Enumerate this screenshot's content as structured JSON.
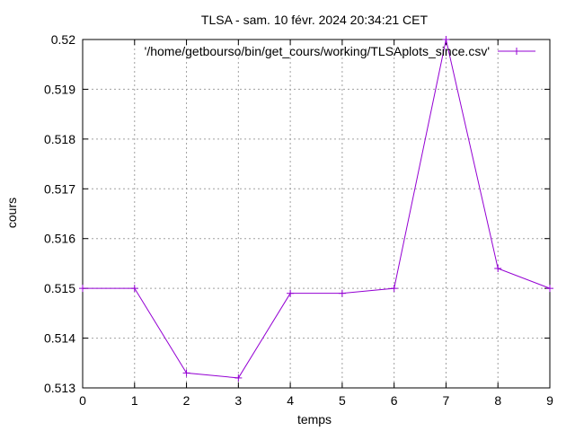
{
  "chart_data": {
    "type": "line",
    "title": "TLSA - sam. 10 févr. 2024 20:34:21 CET",
    "xlabel": "temps",
    "ylabel": "cours",
    "xlim": [
      0,
      9
    ],
    "ylim": [
      0.513,
      0.52
    ],
    "x_ticks": [
      "0",
      "1",
      "2",
      "3",
      "4",
      "5",
      "6",
      "7",
      "8",
      "9"
    ],
    "y_ticks": [
      "0.513",
      "0.514",
      "0.515",
      "0.516",
      "0.517",
      "0.518",
      "0.519",
      "0.52"
    ],
    "grid": true,
    "legend_position": "top-right",
    "series": [
      {
        "name": "'/home/getbourso/bin/get_cours/working/TLSAplots_since.csv'",
        "color": "#9400d3",
        "marker": "plus",
        "x": [
          0,
          1,
          2,
          3,
          4,
          5,
          6,
          7,
          8,
          9
        ],
        "y": [
          0.515,
          0.515,
          0.5133,
          0.5132,
          0.5149,
          0.5149,
          0.515,
          0.52,
          0.5154,
          0.515
        ]
      }
    ]
  }
}
